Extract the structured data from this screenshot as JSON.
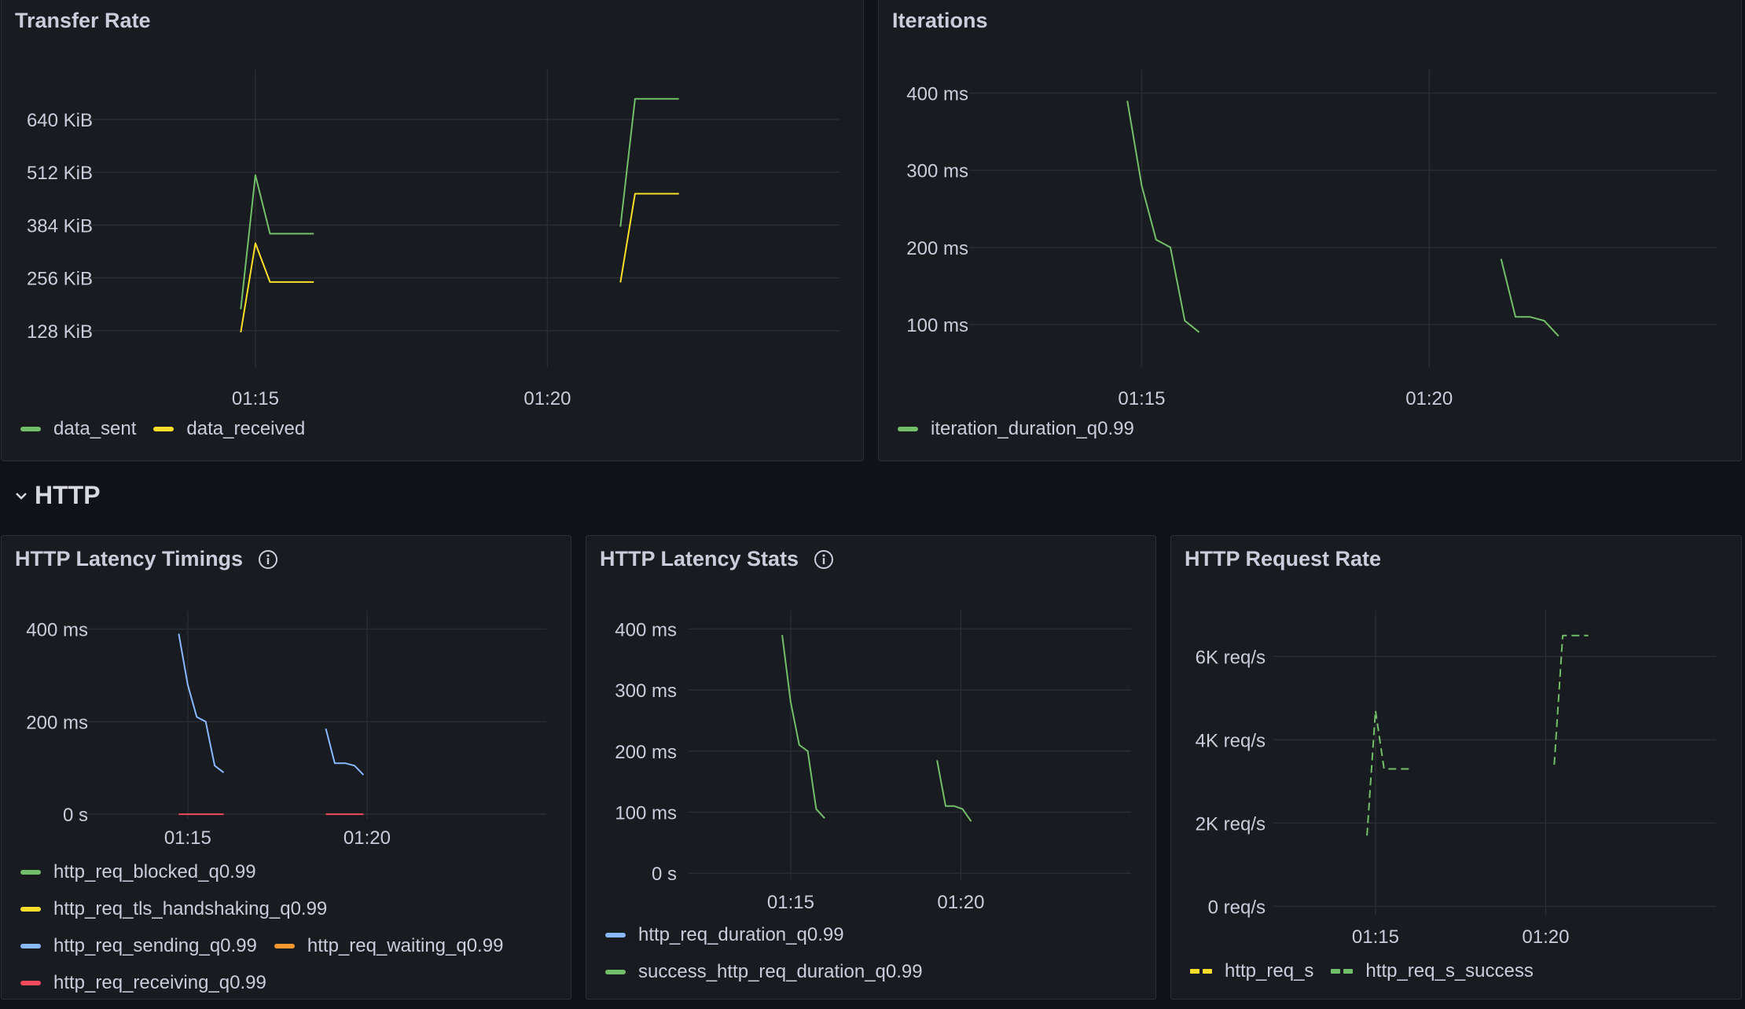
{
  "row": {
    "title": "HTTP"
  },
  "colors": {
    "green": "#73bf69",
    "yellow": "#fade2a",
    "blue": "#8ab8ff",
    "orange": "#ff9830",
    "red": "#f2495c",
    "grid": "#2a2c31",
    "axis_text": "#ccccdc"
  },
  "panels": {
    "transfer": {
      "title": "Transfer Rate"
    },
    "iterations": {
      "title": "Iterations"
    },
    "timings": {
      "title": "HTTP Latency Timings",
      "info_icon": "info-icon"
    },
    "stats": {
      "title": "HTTP Latency Stats",
      "info_icon": "info-icon"
    },
    "rate": {
      "title": "HTTP Request Rate"
    }
  },
  "chart_data": [
    {
      "id": "transfer",
      "type": "line",
      "title": "Transfer Rate",
      "ylim": [
        40,
        760
      ],
      "yticks": [
        {
          "v": 128,
          "label": "128 KiB"
        },
        {
          "v": 256,
          "label": "256 KiB"
        },
        {
          "v": 384,
          "label": "384 KiB"
        },
        {
          "v": 512,
          "label": "512 KiB"
        },
        {
          "v": 640,
          "label": "640 KiB"
        }
      ],
      "xlim": [
        0,
        13
      ],
      "xticks": [
        {
          "v": 3,
          "label": "01:15"
        },
        {
          "v": 8,
          "label": "01:20"
        }
      ],
      "series": [
        {
          "name": "data_sent",
          "color": "#73bf69",
          "segments": [
            [
              [
                2.75,
                180
              ],
              [
                3,
                505
              ],
              [
                3.25,
                363
              ],
              [
                4,
                363
              ]
            ],
            [
              [
                9.25,
                380
              ],
              [
                9.5,
                690
              ],
              [
                10.25,
                690
              ]
            ]
          ]
        },
        {
          "name": "data_received",
          "color": "#fade2a",
          "segments": [
            [
              [
                2.75,
                124
              ],
              [
                3,
                340
              ],
              [
                3.25,
                246
              ],
              [
                4,
                246
              ]
            ],
            [
              [
                9.25,
                245
              ],
              [
                9.5,
                460
              ],
              [
                10.25,
                460
              ]
            ]
          ]
        }
      ]
    },
    {
      "id": "iterations",
      "type": "line",
      "title": "Iterations",
      "ylim": [
        45,
        430
      ],
      "yticks": [
        {
          "v": 100,
          "label": "100 ms"
        },
        {
          "v": 200,
          "label": "200 ms"
        },
        {
          "v": 300,
          "label": "300 ms"
        },
        {
          "v": 400,
          "label": "400 ms"
        }
      ],
      "xlim": [
        0,
        13
      ],
      "xticks": [
        {
          "v": 3,
          "label": "01:15"
        },
        {
          "v": 8,
          "label": "01:20"
        }
      ],
      "series": [
        {
          "name": "iteration_duration_q0.99",
          "color": "#73bf69",
          "segments": [
            [
              [
                2.75,
                390
              ],
              [
                3,
                280
              ],
              [
                3.25,
                210
              ],
              [
                3.5,
                200
              ],
              [
                3.75,
                105
              ],
              [
                4,
                90
              ]
            ],
            [
              [
                9.25,
                185
              ],
              [
                9.5,
                110
              ],
              [
                9.75,
                110
              ],
              [
                10,
                105
              ],
              [
                10.25,
                85
              ]
            ]
          ]
        }
      ]
    },
    {
      "id": "timings",
      "type": "line",
      "title": "HTTP Latency Timings",
      "ylim": [
        -10,
        440
      ],
      "yticks": [
        {
          "v": 0,
          "label": "0 s"
        },
        {
          "v": 200,
          "label": "200 ms"
        },
        {
          "v": 400,
          "label": "400 ms"
        }
      ],
      "xlim": [
        0,
        13
      ],
      "xticks": [
        {
          "v": 3,
          "label": "01:15"
        },
        {
          "v": 8,
          "label": "01:20"
        }
      ],
      "series": [
        {
          "name": "http_req_blocked_q0.99",
          "color": "#73bf69",
          "segments": []
        },
        {
          "name": "http_req_tls_handshaking_q0.99",
          "color": "#fade2a",
          "segments": []
        },
        {
          "name": "http_req_sending_q0.99",
          "color": "#8ab8ff",
          "segments": [
            [
              [
                2.75,
                390
              ],
              [
                3,
                280
              ],
              [
                3.25,
                210
              ],
              [
                3.5,
                200
              ],
              [
                3.75,
                105
              ],
              [
                4,
                90
              ]
            ],
            [
              [
                6.85,
                185
              ],
              [
                7.1,
                110
              ],
              [
                7.4,
                110
              ],
              [
                7.65,
                105
              ],
              [
                7.9,
                85
              ]
            ]
          ]
        },
        {
          "name": "http_req_waiting_q0.99",
          "color": "#ff9830",
          "segments": []
        },
        {
          "name": "http_req_receiving_q0.99",
          "color": "#f2495c",
          "segments": [
            [
              [
                2.75,
                0
              ],
              [
                4,
                0
              ]
            ],
            [
              [
                6.85,
                0
              ],
              [
                7.9,
                0
              ]
            ]
          ]
        }
      ]
    },
    {
      "id": "stats",
      "type": "line",
      "title": "HTTP Latency Stats",
      "ylim": [
        -10,
        430
      ],
      "yticks": [
        {
          "v": 0,
          "label": "0 s"
        },
        {
          "v": 100,
          "label": "100 ms"
        },
        {
          "v": 200,
          "label": "200 ms"
        },
        {
          "v": 300,
          "label": "300 ms"
        },
        {
          "v": 400,
          "label": "400 ms"
        }
      ],
      "xlim": [
        0,
        13
      ],
      "xticks": [
        {
          "v": 3,
          "label": "01:15"
        },
        {
          "v": 8,
          "label": "01:20"
        }
      ],
      "series": [
        {
          "name": "http_req_duration_q0.99",
          "color": "#8ab8ff",
          "segments": []
        },
        {
          "name": "success_http_req_duration_q0.99",
          "color": "#73bf69",
          "segments": [
            [
              [
                2.75,
                390
              ],
              [
                3,
                280
              ],
              [
                3.25,
                210
              ],
              [
                3.5,
                200
              ],
              [
                3.75,
                105
              ],
              [
                4,
                90
              ]
            ],
            [
              [
                7.3,
                185
              ],
              [
                7.55,
                110
              ],
              [
                7.8,
                110
              ],
              [
                8.05,
                105
              ],
              [
                8.3,
                85
              ]
            ]
          ]
        }
      ]
    },
    {
      "id": "rate",
      "type": "line",
      "title": "HTTP Request Rate",
      "ylim": [
        -200,
        7100
      ],
      "yticks": [
        {
          "v": 0,
          "label": "0 req/s"
        },
        {
          "v": 2000,
          "label": "2K req/s"
        },
        {
          "v": 4000,
          "label": "4K req/s"
        },
        {
          "v": 6000,
          "label": "6K req/s"
        }
      ],
      "xlim": [
        0,
        13
      ],
      "xticks": [
        {
          "v": 3,
          "label": "01:15"
        },
        {
          "v": 8,
          "label": "01:20"
        }
      ],
      "series": [
        {
          "name": "http_req_s",
          "color": "#fade2a",
          "dashed": true,
          "segments": []
        },
        {
          "name": "http_req_s_success",
          "color": "#73bf69",
          "dashed": true,
          "segments": [
            [
              [
                2.75,
                1700
              ],
              [
                3,
                4700
              ],
              [
                3.25,
                3300
              ],
              [
                4,
                3300
              ]
            ],
            [
              [
                8.25,
                3400
              ],
              [
                8.5,
                6500
              ],
              [
                9.25,
                6500
              ]
            ]
          ]
        }
      ]
    }
  ]
}
